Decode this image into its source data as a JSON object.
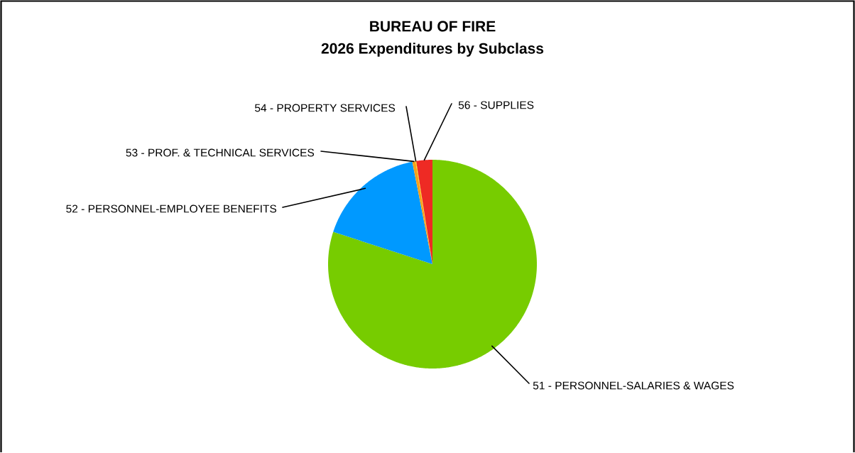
{
  "chart_data": {
    "type": "pie",
    "title": "BUREAU OF FIRE",
    "subtitle": "2026 Expenditures by Subclass",
    "categories": [
      "51 - PERSONNEL-SALARIES & WAGES",
      "52 - PERSONNEL-EMPLOYEE BENEFITS",
      "53 - PROF. & TECHNICAL SERVICES",
      "54 - PROPERTY SERVICES",
      "56 - SUPPLIES"
    ],
    "values": [
      80.0,
      16.9,
      0.5,
      0.1,
      2.5
    ],
    "colors": [
      "#77cc00",
      "#0099ff",
      "#f5a01a",
      "#ffd700",
      "#ee2a24"
    ]
  }
}
